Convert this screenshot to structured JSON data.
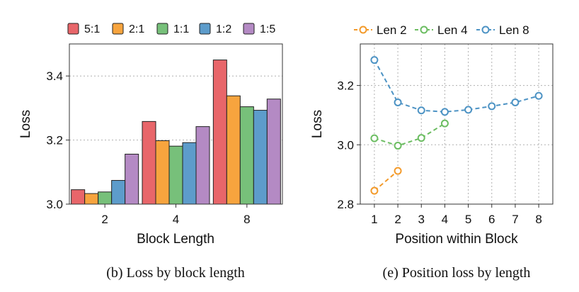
{
  "chart_data": [
    {
      "type": "bar",
      "caption": "(b) Loss by block length",
      "xlabel": "Block Length",
      "ylabel": "Loss",
      "ylim": [
        3.0,
        3.5
      ],
      "yticks": [
        "3.0",
        "3.2",
        "3.4"
      ],
      "ytick_values": [
        3.0,
        3.2,
        3.4
      ],
      "categories": [
        "2",
        "4",
        "8"
      ],
      "grid": true,
      "legend_position": "top",
      "series": [
        {
          "name": "5:1",
          "color": "#e8666a",
          "values": [
            3.045,
            3.258,
            3.45
          ]
        },
        {
          "name": "2:1",
          "color": "#f7a43e",
          "values": [
            3.033,
            3.198,
            3.338
          ]
        },
        {
          "name": "1:1",
          "color": "#77c07a",
          "values": [
            3.038,
            3.181,
            3.304
          ]
        },
        {
          "name": "1:2",
          "color": "#5d9ccb",
          "values": [
            3.074,
            3.192,
            3.293
          ]
        },
        {
          "name": "1:5",
          "color": "#b48ac4",
          "values": [
            3.156,
            3.242,
            3.328
          ]
        }
      ]
    },
    {
      "type": "line",
      "caption": "(e) Position loss by length",
      "xlabel": "Position within Block",
      "ylabel": "Loss",
      "ylim": [
        2.8,
        3.34
      ],
      "yticks": [
        "2.8",
        "3.0",
        "3.2"
      ],
      "ytick_values": [
        2.8,
        3.0,
        3.2
      ],
      "xticks": [
        "1",
        "2",
        "3",
        "4",
        "5",
        "6",
        "7",
        "8"
      ],
      "xtick_values": [
        1,
        2,
        3,
        4,
        5,
        6,
        7,
        8
      ],
      "xlim": [
        0.4,
        8.6
      ],
      "grid": true,
      "legend_position": "top",
      "series": [
        {
          "name": "Len 2",
          "color": "#f39a2a",
          "x": [
            1,
            2
          ],
          "values": [
            2.845,
            2.912
          ]
        },
        {
          "name": "Len 4",
          "color": "#6cbd62",
          "x": [
            1,
            2,
            3,
            4
          ],
          "values": [
            3.022,
            2.997,
            3.023,
            3.072
          ]
        },
        {
          "name": "Len 8",
          "color": "#4d93c4",
          "x": [
            1,
            2,
            3,
            4,
            5,
            6,
            7,
            8
          ],
          "values": [
            3.286,
            3.143,
            3.116,
            3.111,
            3.118,
            3.13,
            3.143,
            3.165
          ]
        }
      ]
    }
  ]
}
